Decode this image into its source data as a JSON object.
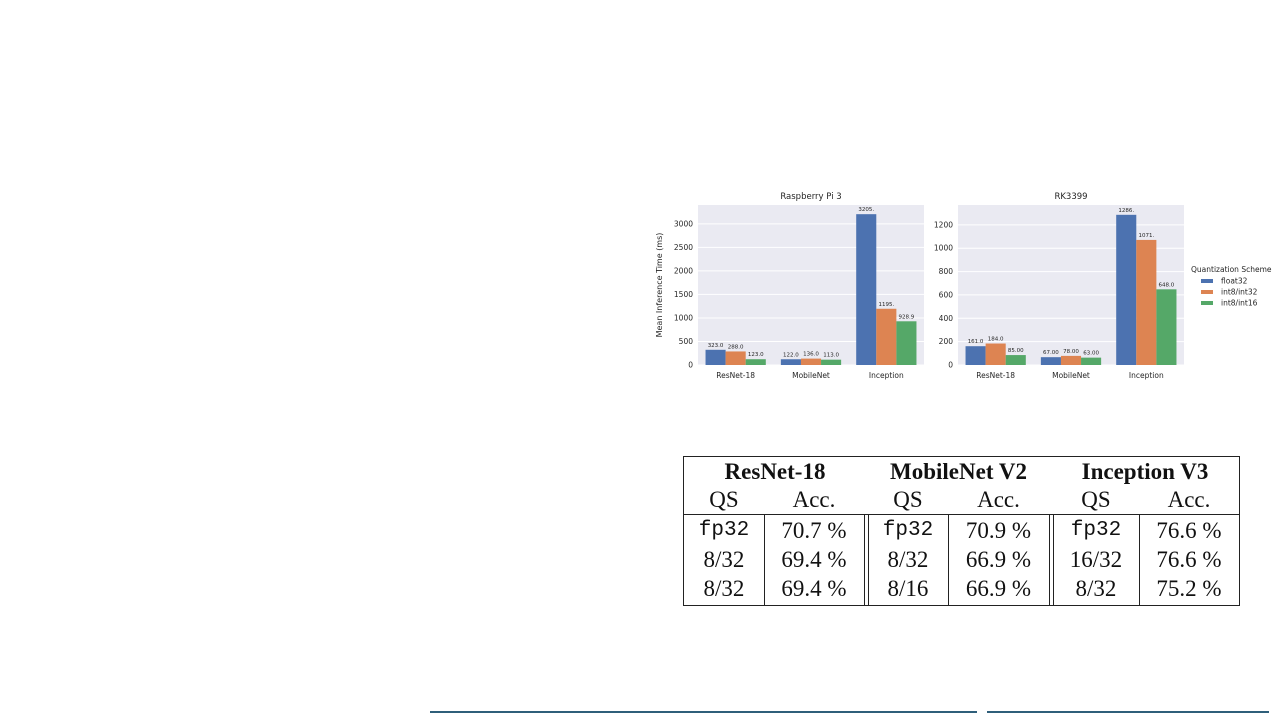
{
  "chart_data": [
    {
      "type": "bar",
      "title": "Raspberry Pi 3",
      "ylabel": "Mean Inference Time (ms)",
      "categories": [
        "ResNet-18",
        "MobileNet",
        "Inception"
      ],
      "ylim": [
        0,
        3400
      ],
      "yticks": [
        0,
        500,
        1000,
        1500,
        2000,
        2500,
        3000
      ],
      "grid": true,
      "series": [
        {
          "name": "float32",
          "values": [
            323.0,
            122.0,
            3205.0
          ],
          "labels": [
            "323.0",
            "122.0",
            "3205."
          ],
          "color": "#4c72b0"
        },
        {
          "name": "int8/int32",
          "values": [
            288.0,
            136.0,
            1195.0
          ],
          "labels": [
            "288.0",
            "136.0",
            "1195."
          ],
          "color": "#dd8452"
        },
        {
          "name": "int8/int16",
          "values": [
            123.0,
            113.0,
            928.9
          ],
          "labels": [
            "123.0",
            "113.0",
            "928.9"
          ],
          "color": "#55a868"
        }
      ]
    },
    {
      "type": "bar",
      "title": "RK3399",
      "ylabel": "",
      "categories": [
        "ResNet-18",
        "MobileNet",
        "Inception"
      ],
      "ylim": [
        0,
        1370
      ],
      "yticks": [
        0,
        200,
        400,
        600,
        800,
        1000,
        1200
      ],
      "grid": true,
      "legend": {
        "title": "Quantization Scheme",
        "position": "right"
      },
      "series": [
        {
          "name": "float32",
          "values": [
            161.0,
            67.0,
            1286.0
          ],
          "labels": [
            "161.0",
            "67.00",
            "1286."
          ],
          "color": "#4c72b0"
        },
        {
          "name": "int8/int32",
          "values": [
            184.0,
            78.0,
            1071.0
          ],
          "labels": [
            "184.0",
            "78.00",
            "1071."
          ],
          "color": "#dd8452"
        },
        {
          "name": "int8/int16",
          "values": [
            85.0,
            63.0,
            648.0
          ],
          "labels": [
            "85.00",
            "63.00",
            "648.0"
          ],
          "color": "#55a868"
        }
      ]
    }
  ],
  "table": {
    "groups": [
      {
        "title": "ResNet-18",
        "qs_header": "QS",
        "acc_header": "Acc.",
        "rows": [
          {
            "qs": "fp32",
            "acc": "70.7 %",
            "mono": true
          },
          {
            "qs": "8/32",
            "acc": "69.4 %",
            "mono": false
          },
          {
            "qs": "8/32",
            "acc": "69.4 %",
            "mono": false
          }
        ]
      },
      {
        "title": "MobileNet V2",
        "qs_header": "QS",
        "acc_header": "Acc.",
        "rows": [
          {
            "qs": "fp32",
            "acc": "70.9 %",
            "mono": true
          },
          {
            "qs": "8/32",
            "acc": "66.9 %",
            "mono": false
          },
          {
            "qs": "8/16",
            "acc": "66.9 %",
            "mono": false
          }
        ]
      },
      {
        "title": "Inception V3",
        "qs_header": "QS",
        "acc_header": "Acc.",
        "rows": [
          {
            "qs": "fp32",
            "acc": "76.6 %",
            "mono": true
          },
          {
            "qs": "16/32",
            "acc": "76.6 %",
            "mono": false
          },
          {
            "qs": "8/32",
            "acc": "75.2 %",
            "mono": false
          }
        ]
      }
    ]
  }
}
